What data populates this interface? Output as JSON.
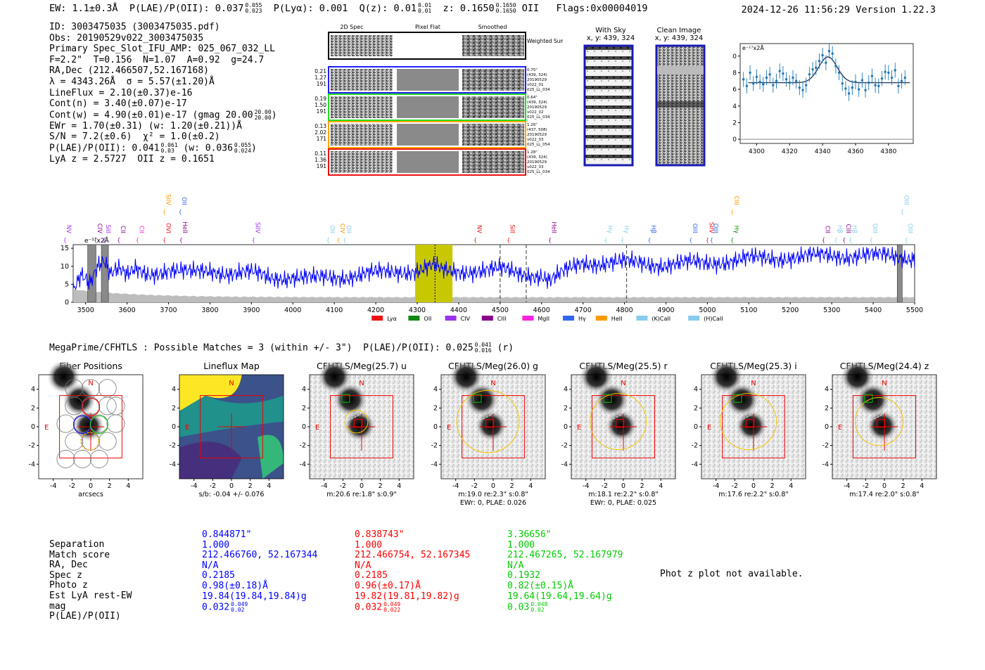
{
  "header": {
    "ew": "EW: 1.1±0.3Å",
    "plae_label": "P(LAE)/P(OII): 0.037",
    "plae_hi": "0.055",
    "plae_lo": "0.023",
    "plya": "P(Lyα): 0.001",
    "qz_label": "Q(z): 0.01",
    "qz_hi": "0.01",
    "qz_lo": "0.01",
    "z_label": "z: 0.1650",
    "z_hi": "0.1650",
    "z_lo": "0.1650",
    "z_line": "OII",
    "flags": "Flags:0x00004019",
    "timestamp": "2024-12-26 11:56:29",
    "version": "Version 1.22.3"
  },
  "info": {
    "id": "ID: 3003475035 (3003475035.pdf)",
    "obs": "Obs: 20190529v022_3003475035",
    "primary": "Primary Spec_Slot_IFU_AMP: 025_067_032_LL",
    "params": "F=2.2\"  T=0.156  N=1.07  A=0.92  g=24.7",
    "radec": "RA,Dec (212.466507,52.167168)",
    "lambda": "λ = 4343.26Å  σ = 5.57(±1.20)Å",
    "lineflux": "LineFlux = 2.10(±0.37)e-16",
    "contn": "Cont(n) = 3.40(±0.07)e-17",
    "contw": "Cont(w) = 4.90(±0.01)e-17 (gmag 20.00",
    "contw_hi": "20.00",
    "contw_lo": "20.00",
    "ewr": "EWr = 1.70(±0.31) (w: 1.20(±0.21))Å",
    "sn": "S/N = 7.2(±0.6)  χ² = 1.0(±0.2)",
    "plae": "P(LAE)/P(OII): 0.041",
    "plae_hi": "0.061",
    "plae_lo": "0.03",
    "plae_w": "(w: 0.036",
    "plae_w_hi": "0.055",
    "plae_w_lo": "0.024",
    "lyaz": "LyA z = 2.5727  OII z = 0.1651"
  },
  "spec2d": {
    "col_titles": [
      "2D Spec",
      "Pixel Flat",
      "Smoothed"
    ],
    "weighted_sum": "Weighted Sum",
    "rows": [
      {
        "left": [
          "0.21",
          "1.27",
          "191"
        ],
        "right": [
          "0.75\"",
          "(439, 324)",
          "20190529",
          "v022_01",
          "025_LL_034"
        ],
        "color": "#1f1fff"
      },
      {
        "left": [
          "0.19",
          "1.50",
          "191"
        ],
        "right": [
          "0.64\"",
          "(439, 324)",
          "20190529",
          "v022_02",
          "025_LL_034"
        ],
        "color": "#22dd22"
      },
      {
        "left": [
          "0.13",
          "2.02",
          "171"
        ],
        "right": [
          "1.26\"",
          "(437, 508)",
          "20190529",
          "v022_03",
          "025_LL_054"
        ],
        "color": "#ffa500"
      },
      {
        "left": [
          "0.11",
          "1.36",
          "191"
        ],
        "right": [
          "1.28\"",
          "(439, 324)",
          "20190529",
          "v022_03",
          "025_LL_034"
        ],
        "color": "#ee1111"
      }
    ]
  },
  "cutouts_small": [
    {
      "title": "With Sky",
      "sub": "x, y: 439, 324"
    },
    {
      "title": "Clean Image",
      "sub": "x, y: 439, 324"
    }
  ],
  "matches_title": "MegaPrime/CFHTLS : Possible Matches = 3 (within +/- 3\")  P(LAE)/P(OII): 0.025",
  "matches_hi": "0.041",
  "matches_lo": "0.016",
  "matches_suffix": "(r)",
  "panels": [
    {
      "title": "Fiber Positions",
      "caption1": "arcsecs",
      "caption2": ""
    },
    {
      "title": "Lineflux Map",
      "caption1": "s/b: -0.04 +/- 0.076",
      "caption2": ""
    },
    {
      "title": "CFHTLS/Meg(25.7) u",
      "caption1": "m:20.6  re:1.8\"  s:0.9\"",
      "caption2": ""
    },
    {
      "title": "CFHTLS/Meg(26.0) g",
      "caption1": "m:19.0  re:2.3\"  s:0.8\"",
      "caption2": "EWr: 0, PLAE: 0.026"
    },
    {
      "title": "CFHTLS/Meg(25.5) r",
      "caption1": "m:18.1  re:2.2\"  s:0.8\"",
      "caption2": "EWr: 0, PLAE: 0.025"
    },
    {
      "title": "CFHTLS/Meg(25.3) i",
      "caption1": "m:17.6  re:2.2\"  s:0.8\"",
      "caption2": ""
    },
    {
      "title": "CFHTLS/Meg(24.4) z",
      "caption1": "m:17.4  re:2.0\"  s:0.8\"",
      "caption2": ""
    }
  ],
  "panel_labels": {
    "north": "N",
    "east": "E"
  },
  "panel_ticks": [
    "-4",
    "-2",
    "0",
    "2",
    "4"
  ],
  "table": {
    "labels": [
      "Separation",
      "Match score",
      "RA, Dec",
      "Spec z",
      "Photo z",
      "Est LyA rest-EW",
      "mag",
      "P(LAE)/P(OII)"
    ],
    "columns": [
      {
        "color": "#0000ff",
        "values": [
          "0.844871\"",
          "1.000",
          "212.466760, 52.167344",
          "N/A",
          "0.2185",
          "0.98(±0.18)Å",
          "19.84(19.84,19.84)g",
          "0.032"
        ],
        "plae_hi": "0.049",
        "plae_lo": "0.02"
      },
      {
        "color": "#ff0000",
        "values": [
          "0.838743\"",
          "1.000",
          "212.466754, 52.167345",
          "N/A",
          "0.2185",
          "0.96(±0.17)Å",
          "19.82(19.81,19.82)g",
          "0.032"
        ],
        "plae_hi": "0.049",
        "plae_lo": "0.022"
      },
      {
        "color": "#00cc00",
        "values": [
          "3.36656\"",
          "1.000",
          "212.467265, 52.167979",
          "N/A",
          "0.1932",
          "0.82(±0.15)Å",
          "19.64(19.64,19.64)g",
          "0.03"
        ],
        "plae_hi": "0.048",
        "plae_lo": "0.02"
      }
    ]
  },
  "phot_z_note": "Phot z plot not available.",
  "chart_data": [
    {
      "type": "scatter",
      "title": "",
      "ylabel_unit": "e⁻¹⁷x2Å",
      "xlim": [
        4290,
        4395
      ],
      "ylim": [
        -0.5,
        11.5
      ],
      "xticks": [
        4300,
        4320,
        4340,
        4360,
        4380
      ],
      "yticks": [
        0,
        2,
        4,
        6,
        8,
        10
      ],
      "x": [
        4292,
        4294,
        4296,
        4298,
        4300,
        4302,
        4304,
        4306,
        4308,
        4310,
        4312,
        4314,
        4316,
        4318,
        4320,
        4322,
        4324,
        4326,
        4328,
        4330,
        4332,
        4334,
        4336,
        4338,
        4340,
        4342,
        4344,
        4346,
        4348,
        4350,
        4352,
        4354,
        4356,
        4358,
        4360,
        4362,
        4364,
        4366,
        4368,
        4370,
        4372,
        4374,
        4376,
        4378,
        4380,
        4382,
        4384,
        4386,
        4388,
        4390
      ],
      "y": [
        7.2,
        6.4,
        8.0,
        6.7,
        7.5,
        6.9,
        6.6,
        7.4,
        7.8,
        6.5,
        7.0,
        8.2,
        7.9,
        7.2,
        6.8,
        7.4,
        7.0,
        6.2,
        5.9,
        6.5,
        7.8,
        8.4,
        8.6,
        9.4,
        10.1,
        9.2,
        10.6,
        10.3,
        8.8,
        8.0,
        6.7,
        6.1,
        5.5,
        6.2,
        6.9,
        6.0,
        7.1,
        5.9,
        6.8,
        7.6,
        6.5,
        6.4,
        7.3,
        8.1,
        8.0,
        7.4,
        8.3,
        6.4,
        7.0,
        7.4
      ],
      "yerr": 0.9,
      "fit": {
        "center": 4343.26,
        "sigma": 5.57,
        "amplitude": 3.1,
        "continuum": 6.8
      }
    },
    {
      "type": "line",
      "ylabel_unit": "e⁻¹⁷x2Å",
      "xlim": [
        3470,
        5500
      ],
      "ylim": [
        0,
        16
      ],
      "xticks": [
        3500,
        3600,
        3700,
        3800,
        3900,
        4000,
        4100,
        4200,
        4300,
        4400,
        4500,
        4600,
        4700,
        4800,
        4900,
        5000,
        5100,
        5200,
        5300,
        5400,
        5500
      ],
      "yticks": [
        0,
        5,
        10,
        15
      ],
      "highlight": {
        "start": 4295,
        "end": 4385,
        "color": "#c8c800"
      },
      "dashed_lines": [
        4343,
        4500,
        4563,
        4805
      ],
      "masked": [
        [
          3505,
          3525
        ],
        [
          3538,
          3555
        ],
        [
          5458,
          5470
        ]
      ],
      "anchors": [
        [
          3470,
          3
        ],
        [
          3490,
          8
        ],
        [
          3510,
          6
        ],
        [
          3530,
          11
        ],
        [
          3545,
          12
        ],
        [
          3560,
          8
        ],
        [
          3580,
          9
        ],
        [
          3600,
          7
        ],
        [
          3620,
          9
        ],
        [
          3650,
          8
        ],
        [
          3700,
          9
        ],
        [
          3750,
          8
        ],
        [
          3800,
          9
        ],
        [
          3850,
          8
        ],
        [
          3900,
          8
        ],
        [
          3950,
          7
        ],
        [
          4000,
          7
        ],
        [
          4050,
          6.5
        ],
        [
          4100,
          7
        ],
        [
          4150,
          7.5
        ],
        [
          4200,
          8
        ],
        [
          4250,
          8.5
        ],
        [
          4300,
          9
        ],
        [
          4320,
          9.5
        ],
        [
          4343,
          10
        ],
        [
          4360,
          8.5
        ],
        [
          4400,
          8.5
        ],
        [
          4450,
          9
        ],
        [
          4500,
          9
        ],
        [
          4550,
          8
        ],
        [
          4600,
          7.5
        ],
        [
          4620,
          6
        ],
        [
          4650,
          8
        ],
        [
          4700,
          11
        ],
        [
          4800,
          11
        ],
        [
          4900,
          10.5
        ],
        [
          5000,
          11
        ],
        [
          5100,
          12
        ],
        [
          5200,
          12.5
        ],
        [
          5300,
          13
        ],
        [
          5400,
          13
        ],
        [
          5500,
          12.5
        ]
      ],
      "legend": [
        {
          "label": "Lyα",
          "color": "#ee1111"
        },
        {
          "label": "OII",
          "color": "#118811"
        },
        {
          "label": "CIV",
          "color": "#9933ee"
        },
        {
          "label": "CIII",
          "color": "#880088"
        },
        {
          "label": "MgII",
          "color": "#ff22dd"
        },
        {
          "label": "Hγ",
          "color": "#3366ee"
        },
        {
          "label": "HeII",
          "color": "#ff9900"
        },
        {
          "label": "(K)CaII",
          "color": "#88ccee"
        },
        {
          "label": "(H)CaII",
          "color": "#88ccee"
        }
      ],
      "line_markers": [
        {
          "label": "NV",
          "x": 3450,
          "color": "#9933ee",
          "row": 1
        },
        {
          "label": "CIV",
          "x": 3524,
          "color": "#880088",
          "row": 1
        },
        {
          "label": "SiII",
          "x": 3545,
          "color": "#9933ee",
          "row": 1
        },
        {
          "label": "CII",
          "x": 3580,
          "color": "#880088",
          "row": 1
        },
        {
          "label": "CII",
          "x": 3625,
          "color": "#ff22dd",
          "row": 1
        },
        {
          "label": "SiIV",
          "x": 3690,
          "color": "#ff9900",
          "row": 0
        },
        {
          "label": "OII",
          "x": 3728,
          "color": "#3366ee",
          "row": 0
        },
        {
          "label": "OVI",
          "x": 3690,
          "color": "#ee1111",
          "row": 1
        },
        {
          "label": "HeII",
          "x": 3730,
          "color": "#880088",
          "row": 1
        },
        {
          "label": "SiIV",
          "x": 3905,
          "color": "#9933ee",
          "row": 1
        },
        {
          "label": "OII",
          "x": 4085,
          "color": "#88ccee",
          "row": 1
        },
        {
          "label": "CIV",
          "x": 4110,
          "color": "#ff9900",
          "row": 1
        },
        {
          "label": "OII",
          "x": 4125,
          "color": "#88ccee",
          "row": 1
        },
        {
          "label": "NV",
          "x": 4440,
          "color": "#ee1111",
          "row": 1
        },
        {
          "label": "SiII",
          "x": 4520,
          "color": "#ee1111",
          "row": 1
        },
        {
          "label": "HeII",
          "x": 4620,
          "color": "#880088",
          "row": 1
        },
        {
          "label": "Hγ",
          "x": 4755,
          "color": "#88ccee",
          "row": 1
        },
        {
          "label": "Hγ",
          "x": 4795,
          "color": "#88ccee",
          "row": 1
        },
        {
          "label": "Hβ",
          "x": 4860,
          "color": "#3366ee",
          "row": 1
        },
        {
          "label": "OIII",
          "x": 4960,
          "color": "#3366ee",
          "row": 1
        },
        {
          "label": "SiIV",
          "x": 5000,
          "color": "#ee1111",
          "row": 1
        },
        {
          "label": "OIII",
          "x": 5010,
          "color": "#3366ee",
          "row": 1
        },
        {
          "label": "CIII",
          "x": 5060,
          "color": "#ff9900",
          "row": 0
        },
        {
          "label": "Hγ",
          "x": 5060,
          "color": "#118811",
          "row": 1
        },
        {
          "label": "CII",
          "x": 5280,
          "color": "#880088",
          "row": 1
        },
        {
          "label": "Hβ",
          "x": 5310,
          "color": "#88ccee",
          "row": 1
        },
        {
          "label": "CIII",
          "x": 5330,
          "color": "#880088",
          "row": 1
        },
        {
          "label": "Hβ",
          "x": 5345,
          "color": "#88ccee",
          "row": 1
        },
        {
          "label": "OIII",
          "x": 5395,
          "color": "#88ccee",
          "row": 1
        },
        {
          "label": "OIII",
          "x": 5470,
          "color": "#88ccee",
          "row": 0
        },
        {
          "label": "OIII",
          "x": 5480,
          "color": "#88ccee",
          "row": 1
        }
      ]
    }
  ]
}
